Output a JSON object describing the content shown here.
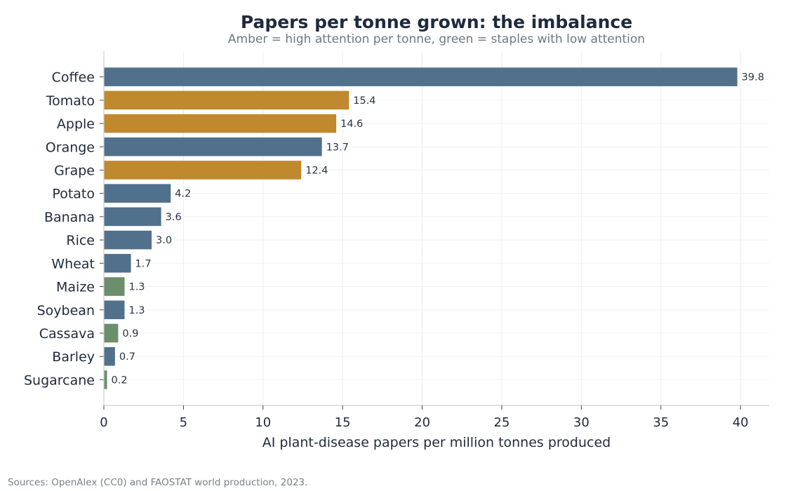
{
  "chart_data": {
    "type": "bar",
    "orientation": "horizontal",
    "title": "Papers per tonne grown: the imbalance",
    "subtitle": "Amber = high attention per tonne, green = staples with low attention",
    "xlabel": "AI plant-disease papers per million tonnes produced",
    "ylabel": "",
    "xlim": [
      0,
      41.8
    ],
    "xticks": [
      "0",
      "5",
      "10",
      "15",
      "20",
      "25",
      "30",
      "35",
      "40"
    ],
    "grid": "x",
    "categories": [
      "Coffee",
      "Tomato",
      "Apple",
      "Orange",
      "Grape",
      "Potato",
      "Banana",
      "Rice",
      "Wheat",
      "Maize",
      "Soybean",
      "Cassava",
      "Barley",
      "Sugarcane"
    ],
    "values": [
      39.8,
      15.4,
      14.6,
      13.7,
      12.4,
      4.2,
      3.6,
      3.0,
      1.7,
      1.3,
      1.3,
      0.9,
      0.7,
      0.2
    ],
    "value_labels": [
      "39.8",
      "15.4",
      "14.6",
      "13.7",
      "12.4",
      "4.2",
      "3.6",
      "3.0",
      "1.7",
      "1.3",
      "1.3",
      "0.9",
      "0.7",
      "0.2"
    ],
    "groups": [
      "neutral",
      "high",
      "high",
      "neutral",
      "high",
      "neutral",
      "neutral",
      "neutral",
      "neutral",
      "low",
      "neutral",
      "low",
      "neutral",
      "low"
    ],
    "colors": {
      "neutral": "#51708b",
      "high": "#c0892e",
      "low": "#6a8f6a"
    }
  },
  "footnote": "Sources: OpenAlex (CC0) and FAOSTAT world production, 2023."
}
